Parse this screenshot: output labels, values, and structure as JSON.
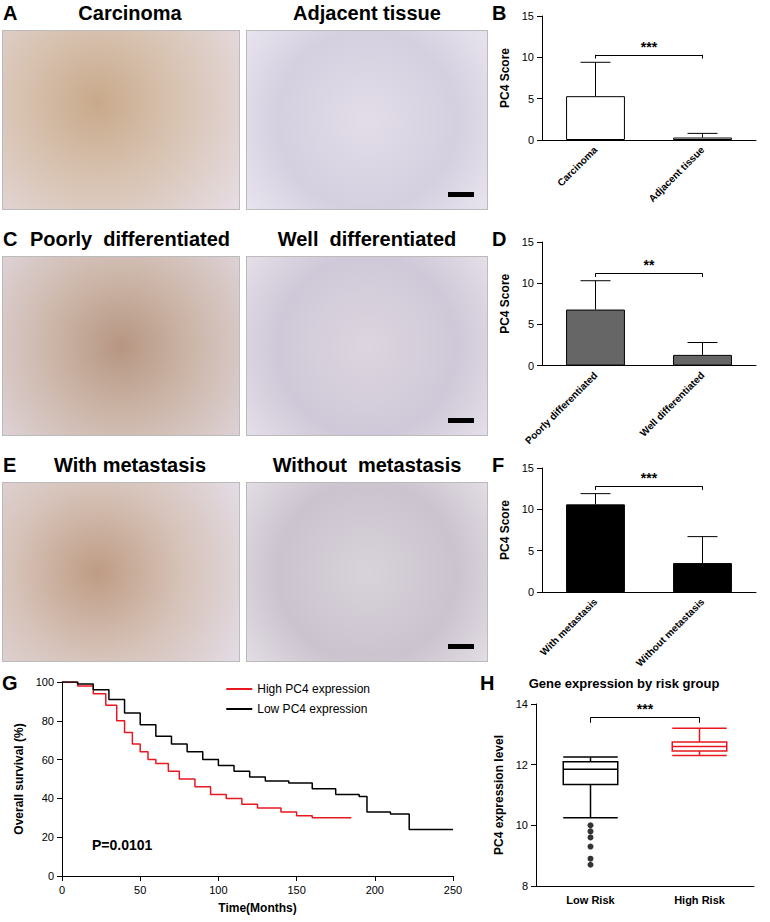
{
  "panels": [
    {
      "label": "A",
      "images": [
        "Carcinoma",
        "Adjacent tissue"
      ]
    },
    {
      "label": "C",
      "images": [
        "Poorly  differentiated",
        "Well  differentiated"
      ]
    },
    {
      "label": "E",
      "images": [
        "With metastasis",
        "Without  metastasis"
      ]
    }
  ],
  "chart_data": [
    {
      "label": "B",
      "type": "bar",
      "categories": [
        "Carcinoma",
        "Adjacent tissue"
      ],
      "values": [
        5.3,
        0.3
      ],
      "errors": [
        4.1,
        0.5
      ],
      "color": "#ffffff",
      "ylabel": "PC4 Score",
      "ylim": [
        0,
        15
      ],
      "yticks": [
        0,
        5,
        10,
        15
      ],
      "significance": "***",
      "grid": false
    },
    {
      "label": "D",
      "type": "bar",
      "categories": [
        "Poorly differentiated",
        "Well differentiated"
      ],
      "values": [
        6.8,
        1.3
      ],
      "errors": [
        3.5,
        1.5
      ],
      "color": "#666666",
      "ylabel": "PC4 Score",
      "ylim": [
        0,
        15
      ],
      "yticks": [
        0,
        5,
        10,
        15
      ],
      "significance": "**",
      "grid": false
    },
    {
      "label": "F",
      "type": "bar",
      "categories": [
        "With metastasis",
        "Without metastasis"
      ],
      "values": [
        10.6,
        3.5
      ],
      "errors": [
        1.3,
        3.2
      ],
      "color": "#000000",
      "ylabel": "PC4 Score",
      "ylim": [
        0,
        15
      ],
      "yticks": [
        0,
        5,
        10,
        15
      ],
      "significance": "***",
      "grid": false
    },
    {
      "label": "G",
      "type": "line",
      "line_style": "step",
      "xlabel": "Time(Months)",
      "ylabel": "Overall survival (%)",
      "xlim": [
        0,
        250
      ],
      "xticks": [
        0,
        50,
        100,
        150,
        200,
        250
      ],
      "ylim": [
        0,
        100
      ],
      "yticks": [
        0,
        20,
        40,
        60,
        80,
        100
      ],
      "legend": "upper right",
      "grid": false,
      "annotations": [
        "P=0.0101"
      ],
      "series": [
        {
          "name": "High PC4 expression",
          "color": "#e8191e",
          "x": [
            0,
            10,
            20,
            28,
            35,
            40,
            45,
            50,
            55,
            60,
            68,
            75,
            85,
            95,
            105,
            115,
            125,
            140,
            150,
            160,
            185
          ],
          "values": [
            100,
            98,
            94,
            88,
            80,
            74,
            68,
            64,
            60,
            58,
            54,
            50,
            46,
            42,
            40,
            37,
            35,
            33,
            31,
            30,
            30
          ]
        },
        {
          "name": "Low PC4 expression",
          "color": "#000000",
          "x": [
            0,
            10,
            20,
            30,
            40,
            50,
            60,
            70,
            80,
            90,
            100,
            110,
            120,
            130,
            145,
            160,
            175,
            190,
            195,
            210,
            222,
            250
          ],
          "values": [
            100,
            99,
            96,
            91,
            84,
            78,
            72,
            68,
            64,
            60,
            57,
            54,
            51,
            49,
            48,
            45,
            42,
            41,
            33,
            32,
            24,
            24
          ]
        }
      ]
    },
    {
      "label": "H",
      "type": "boxplot",
      "title": "Gene expression by risk group",
      "categories": [
        "Low Risk",
        "High Risk"
      ],
      "values": [
        [
          10.25,
          11.35,
          11.85,
          12.1,
          12.25
        ],
        [
          12.3,
          12.45,
          12.6,
          12.75,
          13.2
        ]
      ],
      "outliers": [
        [
          10.0,
          9.8,
          9.6,
          9.3,
          8.9,
          8.7
        ],
        []
      ],
      "colors": [
        "#000000",
        "#e8191e"
      ],
      "ylabel": "PC4 expression level",
      "ylim": [
        8,
        14
      ],
      "yticks": [
        8,
        10,
        12,
        14
      ],
      "significance": "***",
      "grid": false
    }
  ]
}
